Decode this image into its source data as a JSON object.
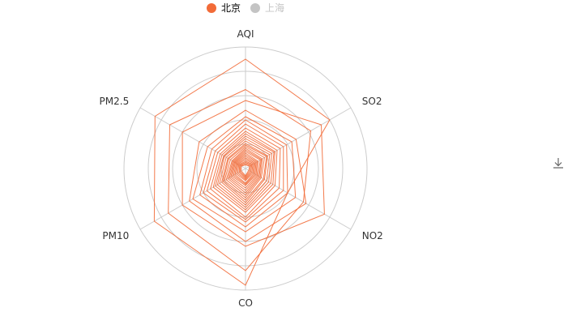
{
  "legend": {
    "items": [
      {
        "name": "北京",
        "color": "#f26b38",
        "active": true
      },
      {
        "name": "上海",
        "color": "#c4c4c4",
        "active": false
      }
    ]
  },
  "toolbar": {
    "download_icon": "download-icon"
  },
  "colors": {
    "beijing": "#f26b38",
    "grid": "#cccccc"
  },
  "chart_data": {
    "type": "radar",
    "indicators": [
      {
        "name": "AQI",
        "max": 300
      },
      {
        "name": "SO2",
        "max": 100
      },
      {
        "name": "NO2",
        "max": 200
      },
      {
        "name": "CO",
        "max": 5
      },
      {
        "name": "PM10",
        "max": 300
      },
      {
        "name": "PM2.5",
        "max": 250
      }
    ],
    "series": [
      {
        "name": "北京",
        "values": [
          [
            270,
            80,
            80,
            4.8,
            260,
            215
          ],
          [
            195,
            62,
            110,
            4.2,
            220,
            180
          ],
          [
            168,
            72,
            150,
            3.2,
            180,
            150
          ],
          [
            144,
            48,
            115,
            3.0,
            160,
            110
          ],
          [
            128,
            44,
            95,
            2.6,
            150,
            90
          ],
          [
            120,
            39,
            80,
            2.4,
            130,
            80
          ],
          [
            110,
            36,
            72,
            2.2,
            120,
            72
          ],
          [
            100,
            33,
            64,
            2.1,
            110,
            66
          ],
          [
            92,
            30,
            56,
            2.0,
            100,
            60
          ],
          [
            86,
            28,
            52,
            1.8,
            92,
            56
          ],
          [
            80,
            27,
            48,
            1.7,
            86,
            52
          ],
          [
            74,
            25,
            44,
            1.6,
            80,
            50
          ],
          [
            68,
            23,
            40,
            1.5,
            74,
            46
          ],
          [
            62,
            21,
            36,
            1.4,
            68,
            42
          ],
          [
            58,
            20,
            34,
            1.3,
            64,
            40
          ],
          [
            54,
            18,
            30,
            1.2,
            60,
            36
          ],
          [
            50,
            16,
            28,
            1.1,
            55,
            32
          ],
          [
            46,
            15,
            26,
            1.0,
            50,
            30
          ],
          [
            42,
            14,
            24,
            0.9,
            46,
            28
          ],
          [
            38,
            12,
            22,
            0.8,
            42,
            26
          ],
          [
            34,
            11,
            20,
            0.7,
            38,
            24
          ],
          [
            30,
            10,
            18,
            0.65,
            34,
            22
          ],
          [
            26,
            9,
            16,
            0.6,
            30,
            20
          ],
          [
            22,
            8,
            14,
            0.5,
            26,
            18
          ],
          [
            18,
            7,
            12,
            0.45,
            22,
            16
          ],
          [
            15,
            6,
            10,
            0.4,
            18,
            14
          ],
          [
            12,
            5,
            8,
            0.35,
            15,
            12
          ],
          [
            9,
            4,
            6,
            0.3,
            12,
            10
          ]
        ]
      },
      {
        "name": "上海",
        "values": []
      }
    ]
  }
}
